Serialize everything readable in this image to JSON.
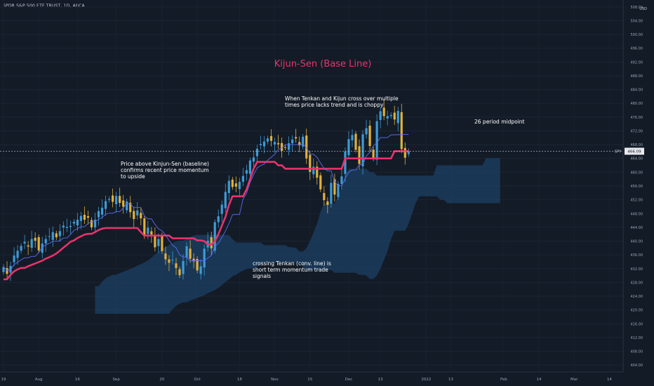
{
  "header": {
    "symbol_line": "SPDR S&P 500 ETF TRUST, 1D, ARCA",
    "currency": "USD"
  },
  "chart_data": {
    "type": "candlestick",
    "title": "Kijun-Sen (Base Line)",
    "title_color": "#e8336b",
    "y_ticks": [
      404,
      408,
      412,
      416,
      420,
      424,
      428,
      432,
      436,
      440,
      444,
      448,
      452,
      456,
      460,
      464,
      468,
      472,
      476,
      480,
      484,
      488,
      492,
      496,
      500,
      504,
      508
    ],
    "ylim": [
      402,
      510
    ],
    "x_ticks": [
      {
        "label": "19",
        "i": 0
      },
      {
        "label": "Aug",
        "i": 10
      },
      {
        "label": "16",
        "i": 21
      },
      {
        "label": "Sep",
        "i": 32
      },
      {
        "label": "20",
        "i": 45
      },
      {
        "label": "Oct",
        "i": 55
      },
      {
        "label": "18",
        "i": 67
      },
      {
        "label": "Nov",
        "i": 77
      },
      {
        "label": "15",
        "i": 87
      },
      {
        "label": "Dec",
        "i": 98
      },
      {
        "label": "13",
        "i": 107
      },
      {
        "label": "2022",
        "i": 120
      },
      {
        "label": "13",
        "i": 127
      },
      {
        "label": "Feb",
        "i": 142
      },
      {
        "label": "14",
        "i": 152
      },
      {
        "label": "Mar",
        "i": 162
      },
      {
        "label": "14",
        "i": 172
      }
    ],
    "last_price": {
      "symbol": "SPY",
      "value": "466.09",
      "y": 466.09
    },
    "closes": [
      432.5,
      430.5,
      432.8,
      435.8,
      437.2,
      438.6,
      439.8,
      438.4,
      440.6,
      440.1,
      437.3,
      439.3,
      440.6,
      441.4,
      442.6,
      441.1,
      442.9,
      444.5,
      444.1,
      444.4,
      445.6,
      446.2,
      447.3,
      446.2,
      446.8,
      444.0,
      446.2,
      448.7,
      449.7,
      451.6,
      452.2,
      451.4,
      453.1,
      451.1,
      450.0,
      451.5,
      448.4,
      446.4,
      448.9,
      446.6,
      441.4,
      443.9,
      441.9,
      438.2,
      440.6,
      437.1,
      434.7,
      433.7,
      434.6,
      432.2,
      430.1,
      434.2,
      438.5,
      434.9,
      434.1,
      431.5,
      432.7,
      437.8,
      440.1,
      437.9,
      445.5,
      447.2,
      450.6,
      454.3,
      457.5,
      455.7,
      455.8,
      457.2,
      458.9,
      460.6,
      463.4,
      464.3,
      466.8,
      468.2,
      468.9,
      469.8,
      469.1,
      468.8,
      468.1,
      466.2,
      467.2,
      468.4,
      469.5,
      469.8,
      467.8,
      470.3,
      464.0,
      460.1,
      461.6,
      458.4,
      455.0,
      451.9,
      450.5,
      456.9,
      453.5,
      456.6,
      458.8,
      466.0,
      469.6,
      470.8,
      466.5,
      462.4,
      471.0,
      472.8,
      467.6,
      464.0,
      474.8,
      477.7,
      476.3,
      476.3,
      476.6,
      475.3,
      477.8,
      466.7,
      464.2,
      466.1
    ],
    "kijun": [
      428.9,
      428.9,
      430.2,
      431.2,
      431.8,
      432.2,
      432.2,
      432.7,
      433.1,
      433.5,
      433.9,
      434.3,
      434.9,
      435.3,
      435.8,
      436.4,
      437.2,
      438.1,
      438.9,
      439.8,
      440.2,
      440.9,
      441.4,
      441.9,
      442.1,
      442.1,
      442.6,
      443.2,
      443.6,
      443.8,
      443.8,
      443.8,
      443.8,
      443.8,
      443.8,
      443.8,
      443.8,
      443.8,
      443.8,
      442.6,
      441.6,
      441.6,
      441.6,
      441.6,
      441.6,
      441.6,
      441.6,
      441.6,
      440.8,
      440.8,
      440.8,
      440.8,
      440.8,
      440.8,
      440.8,
      440.2,
      440.2,
      440.0,
      439.0,
      439.0,
      440.0,
      442.0,
      444.5,
      447.0,
      450.5,
      453.0,
      453.0,
      453.0,
      453.0,
      455.0,
      458.0,
      461.0,
      463.0,
      463.0,
      463.0,
      463.0,
      463.0,
      463.0,
      462.0,
      462.0,
      461.0,
      461.0,
      461.0,
      461.0,
      461.0,
      461.0,
      461.0,
      461.0,
      461.0,
      461.0,
      461.0,
      461.0,
      461.0,
      461.0,
      461.0,
      461.0,
      461.0,
      464.0,
      464.0,
      464.0,
      464.0,
      464.0,
      464.0,
      464.0,
      464.0,
      464.0,
      464.0,
      464.0,
      464.0,
      464.0,
      464.0,
      466.1,
      466.1,
      466.1,
      466.1,
      466.1
    ],
    "annotations": [
      {
        "text": "Price above Kinjun-Sen (baseline)\nconfirms recent price momentum\nto upside"
      },
      {
        "text": "When Tenkan and Kijun cross over multiple\ntimes price lacks trend and is choppy"
      },
      {
        "text": "26 period midpoint"
      },
      {
        "text": "crossing Tenkan (conv. line) is\nshort term momentum trade\nsignals"
      }
    ],
    "colors": {
      "up": "#3d9bd6",
      "down": "#e0b03b",
      "kijun": "#e8336b",
      "tenkan": "#5b6cf0",
      "cloud": "#1f4d7a",
      "cloud_neg": "#6e5e2a",
      "background": "#131b27",
      "axis_text": "#9aa3b2"
    }
  }
}
